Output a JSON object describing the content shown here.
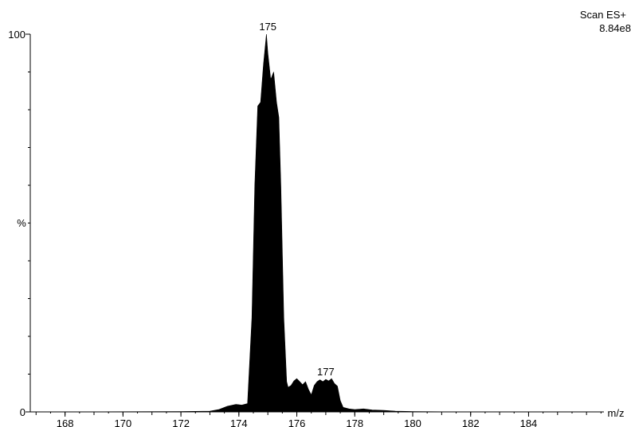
{
  "chart_data": {
    "type": "area",
    "title": "",
    "scan_label": "Scan ES+",
    "intensity_label": "8.84e8",
    "xlabel": "m/z",
    "ylabel": "%",
    "xlim": [
      166.8,
      186.6
    ],
    "ylim": [
      0,
      100
    ],
    "x_ticks": [
      168,
      170,
      172,
      174,
      176,
      178,
      180,
      182,
      184
    ],
    "y_ticks": [
      0,
      100
    ],
    "peak_labels": [
      {
        "x": 175,
        "y": 100,
        "label": "175"
      },
      {
        "x": 177,
        "y": 8.6,
        "label": "177"
      }
    ],
    "fill_color": "#000000",
    "series": [
      {
        "x": [
          166.8,
          172.0,
          173.0,
          173.3,
          173.6,
          173.9,
          174.1,
          174.3,
          174.45,
          174.55,
          174.65,
          174.75,
          174.85,
          174.95,
          175.0,
          175.1,
          175.2,
          175.3,
          175.38,
          175.45,
          175.55,
          175.65,
          175.7,
          175.8,
          175.9,
          176.0,
          176.1,
          176.2,
          176.3,
          176.4,
          176.5,
          176.6,
          176.7,
          176.8,
          176.9,
          177.0,
          177.1,
          177.2,
          177.3,
          177.4,
          177.5,
          177.6,
          177.8,
          178.0,
          178.3,
          178.6,
          179.0,
          179.4,
          180.0,
          181.0,
          182.0,
          186.6
        ],
        "y": [
          0,
          0.1,
          0.2,
          0.6,
          1.5,
          2.0,
          1.8,
          2.2,
          25,
          60,
          81,
          82,
          92,
          100,
          95,
          88,
          90,
          82,
          78,
          60,
          25,
          8.0,
          6.5,
          7.0,
          8.2,
          8.8,
          8.0,
          7.2,
          8.0,
          6.0,
          4.5,
          7.0,
          8.0,
          8.5,
          8.0,
          8.6,
          8.2,
          8.8,
          7.5,
          6.8,
          3.0,
          1.2,
          0.8,
          0.6,
          0.8,
          0.5,
          0.4,
          0.2,
          0.1,
          0.05,
          0.02,
          0
        ]
      }
    ]
  }
}
